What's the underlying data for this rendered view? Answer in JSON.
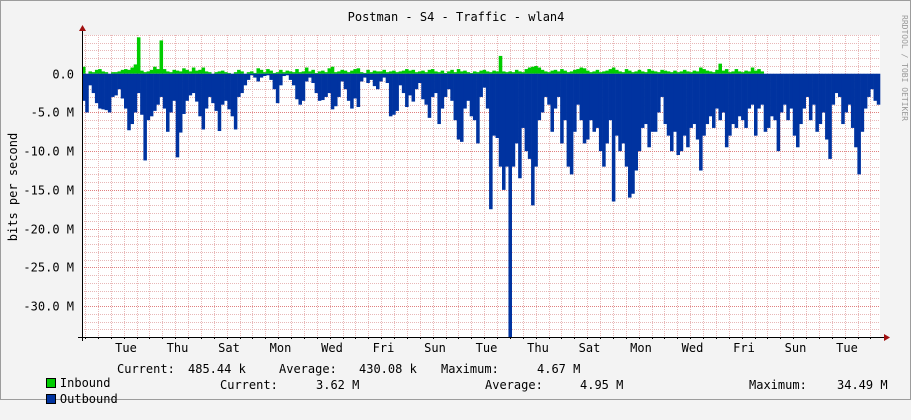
{
  "chart_data": {
    "type": "area",
    "title": "Postman - S4 - Traffic - wlan4",
    "ylabel": "bits per second",
    "watermark": "RRDTOOL / TOBI OETIKER",
    "ylim": [
      -34000000,
      5000000
    ],
    "yticks": [
      {
        "value": 0,
        "label": "0.0"
      },
      {
        "value": -5000000,
        "label": "-5.0 M"
      },
      {
        "value": -10000000,
        "label": "-10.0 M"
      },
      {
        "value": -15000000,
        "label": "-15.0 M"
      },
      {
        "value": -20000000,
        "label": "-20.0 M"
      },
      {
        "value": -25000000,
        "label": "-25.0 M"
      },
      {
        "value": -30000000,
        "label": "-30.0 M"
      }
    ],
    "xticks": [
      "Tue",
      "Thu",
      "Sat",
      "Mon",
      "Wed",
      "Fri",
      "Sun",
      "Tue",
      "Thu",
      "Sat",
      "Mon",
      "Wed",
      "Fri",
      "Sun",
      "Tue"
    ],
    "series": [
      {
        "name": "Inbound",
        "color": "#00cc00",
        "values": [
          0.9,
          0,
          0.3,
          0.2,
          0.5,
          0.6,
          0.3,
          0.2,
          0,
          0.2,
          0.2,
          0.3,
          0.5,
          0.6,
          0.5,
          0.8,
          1.2,
          4.7,
          0.4,
          0.2,
          0.3,
          0.5,
          0.9,
          0.6,
          4.3,
          0.6,
          0.3,
          0.2,
          0.5,
          0.4,
          0.3,
          0.7,
          0.5,
          0.3,
          0.8,
          0.4,
          0.5,
          0.8,
          0.3,
          0.2,
          0,
          0.2,
          0.3,
          0.4,
          0.2,
          0.1,
          0,
          0.2,
          0.5,
          0.3,
          0,
          0.2,
          0.3,
          0.1,
          0.7,
          0.5,
          0.2,
          0.6,
          0.4,
          0.1,
          0.2,
          0.5,
          0.2,
          0.4,
          0.3,
          0.2,
          0.6,
          0.2,
          0.3,
          0.8,
          0.3,
          0.5,
          0.1,
          0.3,
          0.4,
          0.2,
          0.7,
          0.9,
          0.2,
          0.3,
          0.5,
          0.4,
          0.2,
          0.4,
          0.6,
          0.7,
          0.2,
          0.1,
          0.5,
          0.2,
          0.4,
          0.3,
          0.3,
          0.5,
          0.2,
          0.3,
          0.4,
          0.2,
          0.3,
          0.4,
          0.6,
          0.4,
          0.5,
          0.2,
          0.3,
          0.4,
          0.2,
          0.5,
          0.6,
          0.3,
          0.2,
          0.4,
          0.1,
          0.3,
          0.5,
          0.2,
          0.6,
          0.3,
          0.4,
          0.2,
          0.1,
          0.3,
          0.2,
          0.4,
          0.5,
          0.3,
          0.2,
          0.4,
          0.3,
          2.3,
          0.3,
          0.2,
          0.3,
          0.2,
          0.5,
          0.3,
          0.2,
          0.6,
          0.8,
          0.9,
          1.0,
          0.8,
          0.5,
          0.3,
          0.2,
          0.4,
          0.5,
          0.3,
          0.6,
          0.4,
          0.2,
          0.3,
          0.5,
          0.6,
          0.8,
          0.7,
          0.4,
          0.2,
          0.3,
          0.5,
          0.2,
          0.3,
          0.4,
          0.6,
          0.8,
          0.5,
          0.3,
          0.2,
          0.6,
          0.4,
          0.2,
          0.3,
          0.5,
          0.3,
          0.2,
          0.6,
          0.4,
          0.3,
          0.2,
          0.5,
          0.4,
          0.3,
          0.2,
          0.4,
          0.2,
          0.3,
          0.5,
          0.3,
          0.2,
          0.4,
          0.3,
          0.8,
          0.6,
          0.4,
          0.3,
          0.2,
          0.5,
          1.3,
          0.4,
          0.6,
          0.2,
          0.3,
          0.6,
          0.3,
          0.2,
          0.4,
          0.3,
          0.8,
          0.4,
          0.6,
          0.3
        ]
      },
      {
        "name": "Outbound",
        "color": "#0033a0",
        "values": [
          3.5,
          5.0,
          1.5,
          2.5,
          3.8,
          4.5,
          4.6,
          4.7,
          5.0,
          3.0,
          2.8,
          2.0,
          3.2,
          4.5,
          7.3,
          6.5,
          5.0,
          2.5,
          5.3,
          11.2,
          6.0,
          5.5,
          4.8,
          4.0,
          3.0,
          4.5,
          7.5,
          5.0,
          3.5,
          10.8,
          7.6,
          5.2,
          3.5,
          2.8,
          2.5,
          3.6,
          5.5,
          7.2,
          4.5,
          3.0,
          3.8,
          4.8,
          7.4,
          4.0,
          3.5,
          4.6,
          5.5,
          7.2,
          3.0,
          2.5,
          1.5,
          0.8,
          0.2,
          0.5,
          1.0,
          0.5,
          0.3,
          0.2,
          0.8,
          2.0,
          3.8,
          1.5,
          0.3,
          0.2,
          0.8,
          1.5,
          3.3,
          4.0,
          3.5,
          1.0,
          0.5,
          1.2,
          2.5,
          3.5,
          3.4,
          3.0,
          2.5,
          4.6,
          4.2,
          3.0,
          1.0,
          2.0,
          3.5,
          4.5,
          3.2,
          4.3,
          1.0,
          0.5,
          1.2,
          0.8,
          1.6,
          2.0,
          1.0,
          0.5,
          1.2,
          5.5,
          5.3,
          4.8,
          1.5,
          2.5,
          4.3,
          2.8,
          3.6,
          2.0,
          1.2,
          3.3,
          4.0,
          5.7,
          3.0,
          2.5,
          6.5,
          4.5,
          3.0,
          2.0,
          3.5,
          6.0,
          8.5,
          8.8,
          4.5,
          3.5,
          5.5,
          6.0,
          9.0,
          3.0,
          1.8,
          4.5,
          17.5,
          8.0,
          8.3,
          12.0,
          15.0,
          12.0,
          34.5,
          12.0,
          9.0,
          13.5,
          7.0,
          10.0,
          11.0,
          17.0,
          12.0,
          6.0,
          5.0,
          3.0,
          4.0,
          7.5,
          4.5,
          3.0,
          9.0,
          6.0,
          12.0,
          13.0,
          7.5,
          4.0,
          6.0,
          9.0,
          8.5,
          6.0,
          7.5,
          7.0,
          10.0,
          12.0,
          9.0,
          6.0,
          16.5,
          8.0,
          10.0,
          9.0,
          12.0,
          16.0,
          15.5,
          12.5,
          10.0,
          7.0,
          6.5,
          9.5,
          7.5,
          7.5,
          5.0,
          3.0,
          6.5,
          8.0,
          10.0,
          7.5,
          10.5,
          10.0,
          8.0,
          9.5,
          7.0,
          6.5,
          8.5,
          12.5,
          8.0,
          6.5,
          5.5,
          7.0,
          4.5,
          6.0,
          5.0,
          9.5,
          8.0,
          6.5,
          7.0,
          5.5,
          6.0,
          7.0,
          4.5,
          4.0,
          8.0,
          4.5,
          4.0,
          7.5,
          7.0,
          5.5,
          6.0,
          10.0,
          5.0,
          4.0,
          6.0,
          4.5,
          8.0,
          9.5,
          6.5,
          4.5,
          3.0,
          6.0,
          4.0,
          7.5,
          6.5,
          5.0,
          8.5,
          11.0,
          4.0,
          2.5,
          3.0,
          6.5,
          5.0,
          4.0,
          7.0,
          9.5,
          13.0,
          7.5,
          4.5,
          3.0,
          2.0,
          3.5,
          4.0
        ]
      }
    ],
    "value_unit_multiplier": 1000000,
    "grid": true,
    "legend_placement": "bottom-left"
  },
  "legend": {
    "inbound": {
      "name": "Inbound",
      "current_label": "Current:",
      "current_value": "485.44 k",
      "average_label": "Average:",
      "average_value": "430.08 k",
      "maximum_label": "Maximum:",
      "maximum_value": "4.67 M"
    },
    "outbound": {
      "name": "Outbound",
      "current_label": "Current:",
      "current_value": "3.62 M",
      "average_label": "Average:",
      "average_value": "4.95 M",
      "maximum_label": "Maximum:",
      "maximum_value": "34.49 M"
    }
  }
}
